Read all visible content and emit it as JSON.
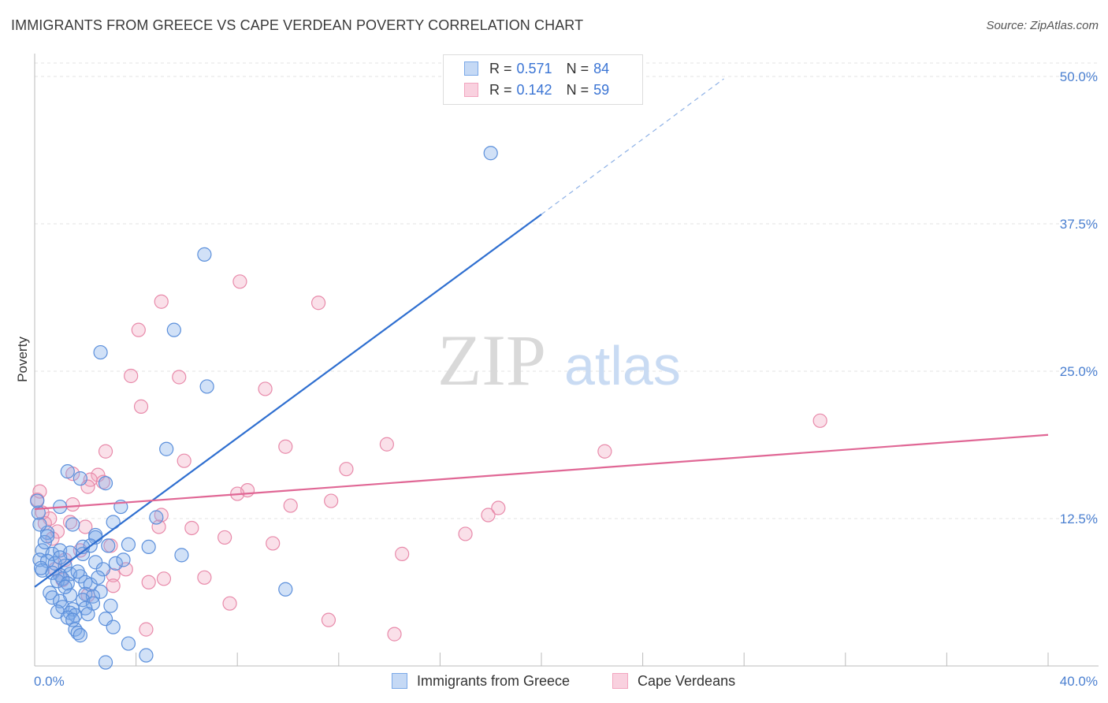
{
  "title": "IMMIGRANTS FROM GREECE VS CAPE VERDEAN POVERTY CORRELATION CHART",
  "source": "Source: ZipAtlas.com",
  "watermark": {
    "zip": "ZIP",
    "atlas": "atlas"
  },
  "legend": {
    "rows": [
      {
        "r_label": "R =",
        "r_value": "0.571",
        "n_label": "N =",
        "n_value": "84",
        "color": "#7aa8e8"
      },
      {
        "r_label": "R =",
        "r_value": "0.142",
        "n_label": "N =",
        "n_value": "59",
        "color": "#f2a5bf"
      }
    ]
  },
  "bottom_legend": [
    {
      "label": "Immigrants from Greece",
      "color": "#7aa8e8"
    },
    {
      "label": "Cape Verdeans",
      "color": "#f2a5bf"
    }
  ],
  "chart_data": {
    "type": "scatter",
    "title": "IMMIGRANTS FROM GREECE VS CAPE VERDEAN POVERTY CORRELATION CHART",
    "xlabel": "",
    "ylabel": "Poverty",
    "xlim": [
      0,
      40
    ],
    "ylim": [
      0,
      50
    ],
    "x_tick_labels": [
      {
        "value": 0,
        "label": "0.0%"
      },
      {
        "value": 40,
        "label": "40.0%"
      }
    ],
    "y_tick_labels": [
      {
        "value": 12.5,
        "label": "12.5%"
      },
      {
        "value": 25,
        "label": "25.0%"
      },
      {
        "value": 37.5,
        "label": "37.5%"
      },
      {
        "value": 50,
        "label": "50.0%"
      }
    ],
    "series": [
      {
        "name": "Immigrants from Greece",
        "color": "#7aa8e8",
        "stroke": "#5b8fdb",
        "R": 0.571,
        "N": 84,
        "trend": {
          "x0": 0,
          "y0": 6.7,
          "x1": 20,
          "y1": 38.3,
          "dash_to_x": 27.2,
          "dash_to_y": 49.8,
          "color": "#2f6fd0"
        },
        "points": [
          [
            18,
            43.5
          ],
          [
            6.7,
            34.9
          ],
          [
            5.5,
            28.5
          ],
          [
            2.6,
            26.6
          ],
          [
            6.8,
            23.7
          ],
          [
            5.2,
            18.4
          ],
          [
            1.3,
            16.5
          ],
          [
            1.8,
            15.9
          ],
          [
            2.8,
            15.5
          ],
          [
            1.0,
            13.5
          ],
          [
            3.4,
            13.5
          ],
          [
            1.5,
            12.0
          ],
          [
            2.4,
            11.1
          ],
          [
            2.4,
            10.9
          ],
          [
            0.5,
            11.3
          ],
          [
            3.7,
            10.3
          ],
          [
            4.5,
            10.1
          ],
          [
            5.8,
            9.4
          ],
          [
            0.3,
            9.8
          ],
          [
            0.7,
            9.5
          ],
          [
            1.0,
            9.8
          ],
          [
            1.4,
            9.6
          ],
          [
            1.9,
            9.5
          ],
          [
            0.2,
            9.0
          ],
          [
            0.5,
            8.9
          ],
          [
            0.8,
            8.7
          ],
          [
            1.2,
            8.5
          ],
          [
            2.4,
            8.8
          ],
          [
            3.2,
            8.7
          ],
          [
            0.3,
            8.1
          ],
          [
            0.7,
            7.9
          ],
          [
            1.0,
            7.7
          ],
          [
            1.4,
            7.8
          ],
          [
            1.8,
            7.6
          ],
          [
            2.7,
            8.2
          ],
          [
            1.1,
            7.4
          ],
          [
            0.9,
            7.2
          ],
          [
            1.3,
            7.0
          ],
          [
            2.0,
            7.1
          ],
          [
            2.2,
            6.9
          ],
          [
            2.6,
            6.3
          ],
          [
            0.6,
            6.2
          ],
          [
            1.4,
            6.0
          ],
          [
            2.0,
            6.1
          ],
          [
            2.3,
            5.9
          ],
          [
            0.7,
            5.8
          ],
          [
            1.0,
            5.5
          ],
          [
            1.9,
            5.6
          ],
          [
            2.3,
            5.3
          ],
          [
            3.0,
            5.1
          ],
          [
            1.1,
            5.0
          ],
          [
            1.5,
            4.8
          ],
          [
            2.0,
            4.9
          ],
          [
            1.4,
            4.5
          ],
          [
            0.9,
            4.6
          ],
          [
            1.6,
            4.3
          ],
          [
            2.1,
            4.4
          ],
          [
            1.3,
            4.1
          ],
          [
            1.5,
            3.9
          ],
          [
            2.8,
            4.0
          ],
          [
            1.6,
            3.1
          ],
          [
            1.7,
            2.8
          ],
          [
            3.1,
            3.3
          ],
          [
            1.8,
            2.6
          ],
          [
            9.9,
            6.5
          ],
          [
            3.7,
            1.9
          ],
          [
            4.4,
            0.9
          ],
          [
            2.8,
            0.3
          ],
          [
            1.0,
            9.2
          ],
          [
            1.7,
            8.0
          ],
          [
            0.4,
            10.5
          ],
          [
            2.2,
            10.2
          ],
          [
            0.2,
            12.0
          ],
          [
            0.15,
            13.0
          ],
          [
            0.1,
            14.0
          ],
          [
            0.5,
            11.0
          ],
          [
            3.1,
            12.2
          ],
          [
            1.9,
            10.1
          ],
          [
            2.9,
            10.2
          ],
          [
            4.8,
            12.6
          ],
          [
            0.25,
            8.3
          ],
          [
            1.2,
            6.7
          ],
          [
            2.5,
            7.5
          ],
          [
            3.5,
            9.0
          ]
        ]
      },
      {
        "name": "Cape Verdeans",
        "color": "#f2a5bf",
        "stroke": "#e88aaa",
        "R": 0.142,
        "N": 59,
        "trend": {
          "x0": 0,
          "y0": 13.3,
          "x1": 40,
          "y1": 19.6,
          "color": "#e06795"
        },
        "points": [
          [
            8.1,
            32.6
          ],
          [
            11.2,
            30.8
          ],
          [
            5.0,
            30.9
          ],
          [
            4.1,
            28.5
          ],
          [
            3.8,
            24.6
          ],
          [
            5.7,
            24.5
          ],
          [
            9.1,
            23.5
          ],
          [
            31.0,
            20.8
          ],
          [
            4.2,
            22.0
          ],
          [
            22.5,
            18.2
          ],
          [
            13.9,
            18.8
          ],
          [
            9.9,
            18.6
          ],
          [
            2.8,
            18.2
          ],
          [
            5.9,
            17.4
          ],
          [
            12.3,
            16.7
          ],
          [
            1.5,
            16.3
          ],
          [
            2.5,
            16.2
          ],
          [
            2.2,
            15.8
          ],
          [
            2.7,
            15.6
          ],
          [
            2.1,
            15.2
          ],
          [
            8.4,
            14.9
          ],
          [
            8.0,
            14.6
          ],
          [
            0.2,
            14.8
          ],
          [
            0.1,
            14.1
          ],
          [
            1.5,
            13.7
          ],
          [
            10.1,
            13.6
          ],
          [
            11.7,
            14.0
          ],
          [
            0.6,
            12.5
          ],
          [
            0.3,
            13.0
          ],
          [
            18.3,
            13.4
          ],
          [
            17.9,
            12.8
          ],
          [
            5.0,
            12.8
          ],
          [
            4.9,
            11.8
          ],
          [
            6.2,
            11.7
          ],
          [
            1.4,
            12.2
          ],
          [
            0.9,
            11.4
          ],
          [
            2.0,
            11.8
          ],
          [
            0.4,
            12.1
          ],
          [
            7.5,
            10.9
          ],
          [
            17.0,
            11.2
          ],
          [
            9.4,
            10.4
          ],
          [
            14.5,
            9.5
          ],
          [
            3.0,
            10.2
          ],
          [
            1.8,
            9.8
          ],
          [
            5.1,
            7.4
          ],
          [
            6.7,
            7.5
          ],
          [
            3.1,
            7.7
          ],
          [
            4.5,
            7.1
          ],
          [
            3.1,
            6.8
          ],
          [
            2.1,
            6.0
          ],
          [
            7.7,
            5.3
          ],
          [
            11.6,
            3.9
          ],
          [
            4.4,
            3.1
          ],
          [
            14.2,
            2.7
          ],
          [
            1.2,
            9.0
          ],
          [
            0.8,
            8.2
          ],
          [
            1.1,
            7.3
          ],
          [
            0.7,
            10.8
          ],
          [
            3.6,
            8.2
          ]
        ]
      }
    ]
  }
}
